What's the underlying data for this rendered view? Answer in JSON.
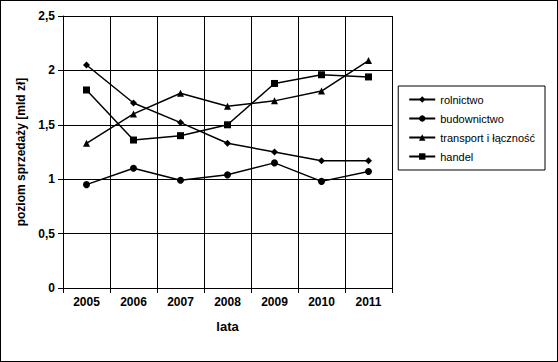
{
  "chart_data": {
    "type": "line",
    "x_label": "lata",
    "y_label": "poziom sprzedaży [mld zł]",
    "categories": [
      "2005",
      "2006",
      "2007",
      "2008",
      "2009",
      "2010",
      "2011"
    ],
    "series": [
      {
        "name": "rolnictwo",
        "color": "#000000",
        "marker": "diamond",
        "line_style": "solid",
        "values": [
          2.05,
          1.7,
          1.52,
          1.33,
          1.25,
          1.17,
          1.17
        ]
      },
      {
        "name": "budownictwo",
        "color": "#000000",
        "marker": "circle",
        "line_style": "solid",
        "values": [
          0.95,
          1.1,
          0.99,
          1.04,
          1.15,
          0.98,
          1.07
        ]
      },
      {
        "name": "transport i łączność",
        "color": "#000000",
        "marker": "triangle",
        "line_style": "solid",
        "values": [
          1.33,
          1.6,
          1.79,
          1.67,
          1.72,
          1.81,
          2.09
        ]
      },
      {
        "name": "handel",
        "color": "#000000",
        "marker": "square",
        "line_style": "solid",
        "values": [
          1.82,
          1.36,
          1.4,
          1.5,
          1.88,
          1.96,
          1.94
        ]
      }
    ],
    "ylim": [
      0,
      2.5
    ],
    "yticks": [
      0,
      {
        "value": 0.5,
        "label": "0,5"
      },
      1,
      {
        "value": 1.5,
        "label": "1,5"
      },
      2,
      {
        "value": 2.5,
        "label": "2,5"
      }
    ],
    "grid": true,
    "legend": "right"
  }
}
